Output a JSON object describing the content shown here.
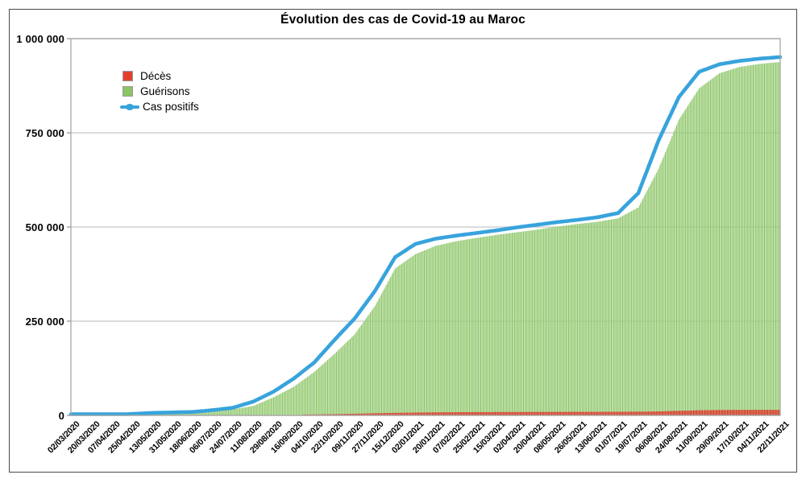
{
  "figure": {
    "title": "Évolution des cas de Covid-19 au Maroc"
  },
  "legend": {
    "position": "top-left",
    "items": [
      {
        "label": "Décès",
        "marker": "square",
        "color": "#e2402f"
      },
      {
        "label": "Guérisons",
        "marker": "square",
        "color": "#8cc465"
      },
      {
        "label": "Cas positifs",
        "marker": "line-marker",
        "color": "#38a3dc"
      }
    ]
  },
  "y_axis": {
    "tick_labels": [
      "1 000 000",
      "750 000",
      "500 000",
      "250 000",
      "0"
    ],
    "min": 0,
    "max": 1000000,
    "gridline_interval": 250000,
    "grid": "horizontal"
  },
  "x_axis": {
    "tick_labels": [
      "02/03/2020",
      "20/03/2020",
      "07/04/2020",
      "25/04/2020",
      "13/05/2020",
      "31/05/2020",
      "18/06/2020",
      "06/07/2020",
      "24/07/2020",
      "11/08/2020",
      "29/08/2020",
      "16/09/2020",
      "04/10/2020",
      "22/10/2020",
      "09/11/2020",
      "27/11/2020",
      "15/12/2020",
      "02/01/2021",
      "20/01/2021",
      "07/02/2021",
      "25/02/2021",
      "15/03/2021",
      "02/04/2021",
      "20/04/2021",
      "08/05/2021",
      "26/05/2021",
      "13/06/2021",
      "01/07/2021",
      "19/07/2021",
      "06/08/2021",
      "24/08/2021",
      "11/09/2021",
      "29/09/2021",
      "17/10/2021",
      "04/11/2021",
      "22/11/2021"
    ],
    "label_rotation_deg": -45
  },
  "chart_data": {
    "type": "bar",
    "subtype": "daily cumulative bars with cumulative line overlay",
    "title": "Évolution des cas de Covid-19 au Maroc",
    "xlabel": "",
    "ylabel": "",
    "ylim": [
      0,
      1000000
    ],
    "grid": true,
    "legend_position": "top-left",
    "x_step_days": 18,
    "categories": [
      "02/03/2020",
      "20/03/2020",
      "07/04/2020",
      "25/04/2020",
      "13/05/2020",
      "31/05/2020",
      "18/06/2020",
      "06/07/2020",
      "24/07/2020",
      "11/08/2020",
      "29/08/2020",
      "16/09/2020",
      "04/10/2020",
      "22/10/2020",
      "09/11/2020",
      "27/11/2020",
      "15/12/2020",
      "02/01/2021",
      "20/01/2021",
      "07/02/2021",
      "25/02/2021",
      "15/03/2021",
      "02/04/2021",
      "20/04/2021",
      "08/05/2021",
      "26/05/2021",
      "13/06/2021",
      "01/07/2021",
      "19/07/2021",
      "06/08/2021",
      "24/08/2021",
      "11/09/2021",
      "29/09/2021",
      "17/10/2021",
      "04/11/2021",
      "22/11/2021"
    ],
    "series": [
      {
        "name": "Décès",
        "type": "bar",
        "color": "#e2402f",
        "color_alt": "#d13527",
        "values": [
          0,
          3,
          90,
          160,
          190,
          205,
          215,
          230,
          310,
          560,
          1100,
          1700,
          2400,
          3200,
          4300,
          5700,
          6700,
          7500,
          8100,
          8450,
          8700,
          8900,
          9000,
          9200,
          9300,
          9400,
          9500,
          9600,
          9800,
          10600,
          12200,
          13600,
          14300,
          14600,
          14700,
          14800
        ]
      },
      {
        "name": "Guérisons",
        "type": "bar",
        "color": "#8cc465",
        "color_alt": "#a3d286",
        "values": [
          0,
          10,
          100,
          500,
          3300,
          4900,
          8000,
          9300,
          16000,
          25000,
          48000,
          76000,
          115000,
          163000,
          215000,
          290000,
          390000,
          428000,
          450000,
          462000,
          471000,
          479000,
          486000,
          493000,
          501000,
          508000,
          514000,
          523000,
          552000,
          655000,
          785000,
          868000,
          908000,
          925000,
          933000,
          938000
        ]
      },
      {
        "name": "Cas positifs",
        "type": "line",
        "color": "#38a3dc",
        "values": [
          1,
          100,
          1200,
          3900,
          6600,
          7800,
          9100,
          14000,
          20300,
          36700,
          63000,
          98000,
          140000,
          200000,
          257000,
          330000,
          420000,
          455000,
          469000,
          477000,
          484000,
          491000,
          499000,
          506000,
          513000,
          519000,
          526000,
          537000,
          590000,
          730000,
          845000,
          912000,
          932000,
          941000,
          947000,
          951000
        ]
      }
    ],
    "colors": {
      "gridline": "#c8c8c8",
      "plot_border": "#a8a8a8",
      "figure_border": "#4a4a4a"
    }
  }
}
